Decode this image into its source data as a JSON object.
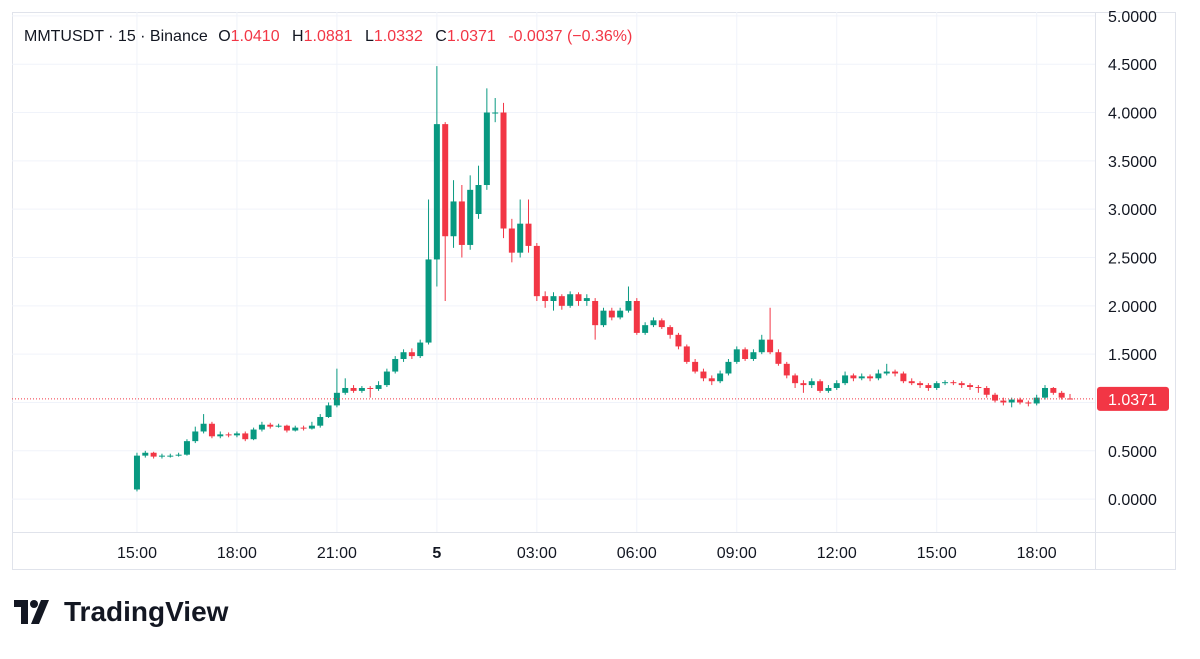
{
  "header": {
    "symbol": "MMTUSDT · 15 · Binance",
    "open_label": "O",
    "open": "1.0410",
    "high_label": "H",
    "high": "1.0881",
    "low_label": "L",
    "low": "1.0332",
    "close_label": "C",
    "close": "1.0371",
    "change": "-0.0037 (−0.36%)"
  },
  "chart_data": {
    "type": "candlestick",
    "up_color": "#089981",
    "down_color": "#f23645",
    "xlim": [
      -15,
      115
    ],
    "xticks": [
      {
        "value": 0,
        "label": "15:00"
      },
      {
        "value": 12,
        "label": "18:00"
      },
      {
        "value": 24,
        "label": "21:00"
      },
      {
        "value": 36,
        "label": "5"
      },
      {
        "value": 48,
        "label": "03:00"
      },
      {
        "value": 60,
        "label": "06:00"
      },
      {
        "value": 72,
        "label": "09:00"
      },
      {
        "value": 84,
        "label": "12:00"
      },
      {
        "value": 96,
        "label": "15:00"
      },
      {
        "value": 108,
        "label": "18:00"
      }
    ],
    "ylim": [
      -0.34,
      5.04
    ],
    "yticks": [
      {
        "value": 0,
        "label": "0.0000"
      },
      {
        "value": 0.5,
        "label": "0.5000"
      },
      {
        "value": 1,
        "label": "1.0000"
      },
      {
        "value": 1.5,
        "label": "1.5000"
      },
      {
        "value": 2,
        "label": "2.0000"
      },
      {
        "value": 2.5,
        "label": "2.5000"
      },
      {
        "value": 3,
        "label": "3.0000"
      },
      {
        "value": 3.5,
        "label": "3.5000"
      },
      {
        "value": 4,
        "label": "4.0000"
      },
      {
        "value": 4.5,
        "label": "4.5000"
      },
      {
        "value": 5,
        "label": "5.0000"
      }
    ],
    "grid": true,
    "last_price": {
      "value": 1.0371,
      "label": "1.0371"
    },
    "open": [
      0.1,
      0.45,
      0.48,
      0.44,
      0.45,
      0.45,
      0.46,
      0.6,
      0.7,
      0.78,
      0.65,
      0.67,
      0.66,
      0.68,
      0.62,
      0.72,
      0.77,
      0.75,
      0.76,
      0.71,
      0.74,
      0.73,
      0.76,
      0.85,
      0.97,
      1.1,
      1.15,
      1.12,
      1.15,
      1.14,
      1.18,
      1.32,
      1.45,
      1.52,
      1.48,
      1.62,
      2.48,
      3.88,
      2.72,
      3.08,
      2.63,
      2.95,
      3.25,
      3.99,
      4.0,
      2.8,
      2.55,
      2.85,
      2.62,
      2.1,
      2.05,
      2.1,
      2.0,
      2.12,
      2.05,
      2.05,
      1.8,
      1.95,
      1.88,
      1.95,
      2.05,
      1.72,
      1.8,
      1.85,
      1.78,
      1.7,
      1.58,
      1.42,
      1.32,
      1.25,
      1.22,
      1.3,
      1.42,
      1.55,
      1.45,
      1.52,
      1.65,
      1.52,
      1.4,
      1.28,
      1.2,
      1.18,
      1.22,
      1.12,
      1.15,
      1.2,
      1.28,
      1.25,
      1.27,
      1.25,
      1.3,
      1.32,
      1.3,
      1.22,
      1.2,
      1.18,
      1.15,
      1.2,
      1.21,
      1.2,
      1.18,
      1.16,
      1.15,
      1.08,
      1.02,
      1.0,
      1.03,
      1.0,
      0.99,
      1.05,
      1.15,
      1.1,
      1.041
    ],
    "high": [
      0.48,
      0.5,
      0.49,
      0.47,
      0.47,
      0.48,
      0.62,
      0.75,
      0.88,
      0.8,
      0.7,
      0.69,
      0.7,
      0.7,
      0.74,
      0.8,
      0.79,
      0.78,
      0.77,
      0.76,
      0.76,
      0.8,
      0.88,
      1.0,
      1.35,
      1.25,
      1.18,
      1.17,
      1.17,
      1.22,
      1.35,
      1.48,
      1.55,
      1.56,
      1.65,
      3.1,
      4.48,
      3.9,
      3.3,
      3.25,
      3.35,
      3.45,
      4.25,
      4.15,
      4.1,
      2.9,
      3.1,
      3.1,
      2.65,
      2.15,
      2.14,
      2.12,
      2.15,
      2.14,
      2.12,
      2.08,
      1.98,
      1.98,
      1.98,
      2.2,
      2.08,
      1.83,
      1.88,
      1.87,
      1.8,
      1.72,
      1.6,
      1.45,
      1.35,
      1.28,
      1.33,
      1.45,
      1.58,
      1.57,
      1.55,
      1.7,
      1.98,
      1.55,
      1.42,
      1.3,
      1.23,
      1.25,
      1.24,
      1.18,
      1.23,
      1.32,
      1.3,
      1.3,
      1.29,
      1.34,
      1.4,
      1.34,
      1.32,
      1.25,
      1.22,
      1.2,
      1.22,
      1.23,
      1.23,
      1.22,
      1.2,
      1.18,
      1.17,
      1.1,
      1.05,
      1.05,
      1.05,
      1.02,
      1.08,
      1.18,
      1.16,
      1.12,
      1.0881
    ],
    "low": [
      0.08,
      0.43,
      0.42,
      0.42,
      0.43,
      0.44,
      0.45,
      0.58,
      0.68,
      0.63,
      0.63,
      0.64,
      0.64,
      0.6,
      0.61,
      0.7,
      0.73,
      0.74,
      0.69,
      0.7,
      0.71,
      0.72,
      0.74,
      0.84,
      0.95,
      1.08,
      1.1,
      1.1,
      1.05,
      1.12,
      1.16,
      1.3,
      1.42,
      1.45,
      1.46,
      1.6,
      2.2,
      2.05,
      2.6,
      2.5,
      2.58,
      2.9,
      3.2,
      3.9,
      2.7,
      2.45,
      2.5,
      2.55,
      2.05,
      1.98,
      1.95,
      1.96,
      1.98,
      2.0,
      2.0,
      1.65,
      1.78,
      1.85,
      1.86,
      1.93,
      1.7,
      1.7,
      1.78,
      1.76,
      1.66,
      1.55,
      1.4,
      1.3,
      1.22,
      1.18,
      1.2,
      1.28,
      1.4,
      1.43,
      1.43,
      1.5,
      1.5,
      1.38,
      1.25,
      1.15,
      1.1,
      1.15,
      1.1,
      1.1,
      1.13,
      1.18,
      1.22,
      1.23,
      1.22,
      1.23,
      1.28,
      1.27,
      1.2,
      1.18,
      1.15,
      1.12,
      1.13,
      1.18,
      1.18,
      1.15,
      1.13,
      1.1,
      1.05,
      1.0,
      0.97,
      0.95,
      0.98,
      0.96,
      0.97,
      1.03,
      1.08,
      1.03,
      1.0332
    ],
    "close": [
      0.45,
      0.48,
      0.44,
      0.45,
      0.45,
      0.46,
      0.6,
      0.7,
      0.78,
      0.65,
      0.67,
      0.66,
      0.68,
      0.62,
      0.72,
      0.77,
      0.75,
      0.76,
      0.71,
      0.74,
      0.73,
      0.76,
      0.85,
      0.97,
      1.1,
      1.15,
      1.12,
      1.15,
      1.14,
      1.18,
      1.32,
      1.45,
      1.52,
      1.48,
      1.62,
      2.48,
      3.88,
      2.72,
      3.08,
      2.63,
      3.2,
      3.25,
      4.0,
      4.0,
      2.8,
      2.55,
      2.85,
      2.62,
      2.1,
      2.05,
      2.1,
      2.0,
      2.12,
      2.05,
      2.08,
      1.8,
      1.95,
      1.88,
      1.95,
      2.05,
      1.72,
      1.8,
      1.85,
      1.78,
      1.7,
      1.58,
      1.42,
      1.32,
      1.25,
      1.22,
      1.3,
      1.42,
      1.55,
      1.45,
      1.52,
      1.65,
      1.52,
      1.4,
      1.28,
      1.2,
      1.18,
      1.22,
      1.12,
      1.15,
      1.2,
      1.28,
      1.25,
      1.27,
      1.25,
      1.3,
      1.32,
      1.3,
      1.22,
      1.2,
      1.18,
      1.15,
      1.2,
      1.21,
      1.2,
      1.18,
      1.16,
      1.15,
      1.08,
      1.02,
      1.0,
      1.03,
      1.0,
      0.99,
      1.05,
      1.15,
      1.1,
      1.05,
      1.0371
    ]
  },
  "brand": "TradingView"
}
